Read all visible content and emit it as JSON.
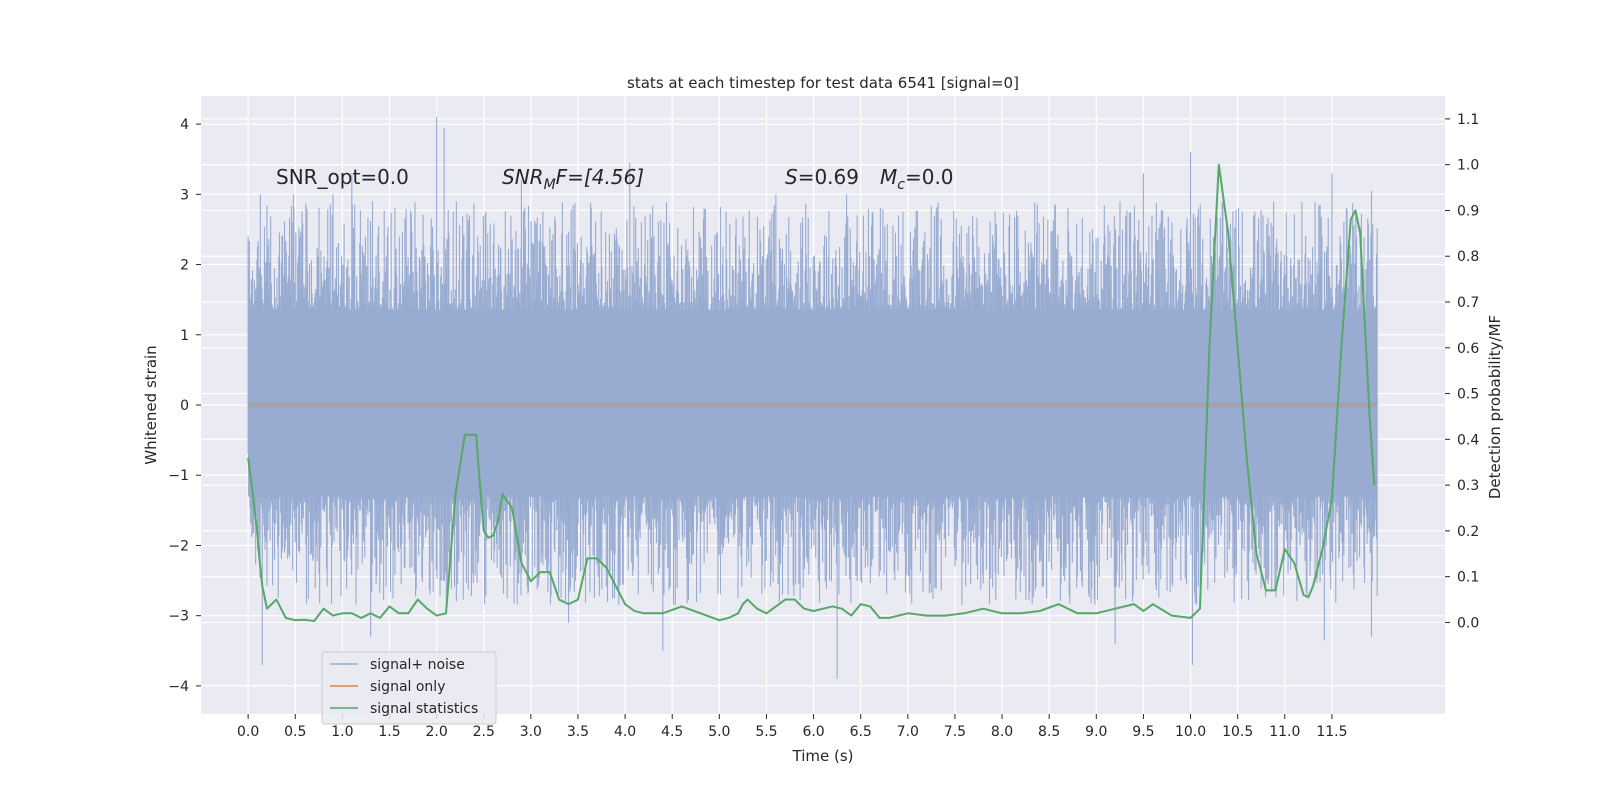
{
  "chart_data": {
    "type": "line",
    "title": "stats at each timestep for test data 6541 [signal=0]",
    "xlabel": "Time (s)",
    "ylabel": "Whitened strain",
    "y2label": "Detection probability/MF",
    "xlim": [
      -0.5,
      12.7
    ],
    "ylim": [
      -4.4,
      4.4
    ],
    "y2lim": [
      -0.2,
      1.15
    ],
    "x_ticks": [
      0.0,
      0.5,
      1.0,
      1.5,
      2.0,
      2.5,
      3.0,
      3.5,
      4.0,
      4.5,
      5.0,
      5.5,
      6.0,
      6.5,
      7.0,
      7.5,
      8.0,
      8.5,
      9.0,
      9.5,
      10.0,
      10.5,
      11.0,
      11.5
    ],
    "x_tick_labels": [
      "0.0",
      "0.5",
      "1.0",
      "1.5",
      "2.0",
      "2.5",
      "3.0",
      "3.5",
      "4.0",
      "4.5",
      "5.0",
      "5.5",
      "6.0",
      "6.5",
      "7.0",
      "7.5",
      "8.0",
      "8.5",
      "9.0",
      "9.5",
      "10.0",
      "10.5",
      "11.0",
      "11.5"
    ],
    "y_ticks": [
      4,
      3,
      2,
      1,
      0,
      -1,
      -2,
      -3,
      -4
    ],
    "y_tick_labels": [
      "4",
      "3",
      "2",
      "1",
      "0",
      "−1",
      "−2",
      "−3",
      "−4"
    ],
    "y2_ticks": [
      1.1,
      1.0,
      0.9,
      0.8,
      0.7,
      0.6,
      0.5,
      0.4,
      0.3,
      0.2,
      0.1,
      0.0
    ],
    "y2_tick_labels": [
      "1.1",
      "1.0",
      "0.9",
      "0.8",
      "0.7",
      "0.6",
      "0.5",
      "0.4",
      "0.3",
      "0.2",
      "0.1",
      "0.0"
    ],
    "grid": true,
    "legend_position": "lower-left",
    "annotations": {
      "snr_opt": "SNR_opt=0.0",
      "snr_mf_main": "SNR",
      "snr_mf_sub": "M",
      "snr_mf_tail": "F=[4.56]",
      "s_var": "S",
      "s_val": "=0.69",
      "mc_var": "M",
      "mc_sub": "c",
      "mc_val": "=0.0"
    },
    "series": [
      {
        "name": "signal+ noise",
        "color": "#98abd1",
        "axis": "left",
        "x_range": [
          0.0,
          11.98
        ],
        "core_band": [
          -1.3,
          1.35
        ],
        "peaks": [
          {
            "x": 0.13,
            "y": 3.0
          },
          {
            "x": 0.48,
            "y": 3.0
          },
          {
            "x": 0.9,
            "y": 3.0
          },
          {
            "x": 1.1,
            "y": 3.3
          },
          {
            "x": 1.32,
            "y": 2.9
          },
          {
            "x": 2.0,
            "y": 4.1
          },
          {
            "x": 2.08,
            "y": 3.95
          },
          {
            "x": 2.9,
            "y": 3.2
          },
          {
            "x": 4.05,
            "y": 3.45
          },
          {
            "x": 5.6,
            "y": 3.0
          },
          {
            "x": 6.35,
            "y": 3.0
          },
          {
            "x": 9.5,
            "y": 3.3
          },
          {
            "x": 10.0,
            "y": 3.6
          },
          {
            "x": 11.5,
            "y": 3.3
          },
          {
            "x": 11.92,
            "y": 3.05
          }
        ],
        "troughs": [
          {
            "x": 0.15,
            "y": -3.7
          },
          {
            "x": 1.3,
            "y": -3.3
          },
          {
            "x": 3.4,
            "y": -3.1
          },
          {
            "x": 4.4,
            "y": -3.5
          },
          {
            "x": 6.25,
            "y": -3.9
          },
          {
            "x": 9.2,
            "y": -3.4
          },
          {
            "x": 10.02,
            "y": -3.7
          },
          {
            "x": 11.42,
            "y": -3.35
          },
          {
            "x": 11.92,
            "y": -3.3
          }
        ]
      },
      {
        "name": "signal only",
        "color": "#dd8452",
        "axis": "left",
        "x": [
          0.0,
          11.98
        ],
        "y": [
          0.0,
          0.0
        ]
      },
      {
        "name": "signal statistics",
        "color": "#55a868",
        "axis": "right",
        "x": [
          0.0,
          0.05,
          0.1,
          0.12,
          0.15,
          0.2,
          0.3,
          0.4,
          0.5,
          0.6,
          0.7,
          0.8,
          0.9,
          1.0,
          1.1,
          1.2,
          1.3,
          1.4,
          1.5,
          1.6,
          1.7,
          1.8,
          1.9,
          2.0,
          2.1,
          2.2,
          2.3,
          2.35,
          2.42,
          2.46,
          2.5,
          2.55,
          2.6,
          2.65,
          2.7,
          2.8,
          2.9,
          3.0,
          3.1,
          3.2,
          3.3,
          3.4,
          3.5,
          3.6,
          3.7,
          3.8,
          3.9,
          4.0,
          4.1,
          4.2,
          4.3,
          4.4,
          4.6,
          4.8,
          5.0,
          5.1,
          5.2,
          5.25,
          5.3,
          5.4,
          5.5,
          5.7,
          5.8,
          5.9,
          6.0,
          6.2,
          6.3,
          6.4,
          6.5,
          6.6,
          6.7,
          6.8,
          7.0,
          7.2,
          7.4,
          7.6,
          7.8,
          8.0,
          8.2,
          8.4,
          8.6,
          8.8,
          9.0,
          9.2,
          9.4,
          9.5,
          9.6,
          9.8,
          10.0,
          10.1,
          10.2,
          10.3,
          10.4,
          10.5,
          10.6,
          10.7,
          10.8,
          10.9,
          11.0,
          11.1,
          11.2,
          11.25,
          11.3,
          11.4,
          11.5,
          11.6,
          11.7,
          11.75,
          11.8,
          11.85,
          11.9,
          11.95
        ],
        "y": [
          0.36,
          0.28,
          0.19,
          0.14,
          0.08,
          0.03,
          0.05,
          0.01,
          0.005,
          0.006,
          0.003,
          0.03,
          0.015,
          0.02,
          0.02,
          0.01,
          0.02,
          0.01,
          0.035,
          0.02,
          0.02,
          0.05,
          0.03,
          0.015,
          0.02,
          0.28,
          0.41,
          0.41,
          0.41,
          0.3,
          0.2,
          0.185,
          0.19,
          0.22,
          0.28,
          0.25,
          0.13,
          0.09,
          0.11,
          0.11,
          0.05,
          0.04,
          0.05,
          0.14,
          0.14,
          0.12,
          0.08,
          0.04,
          0.025,
          0.02,
          0.02,
          0.02,
          0.035,
          0.02,
          0.005,
          0.01,
          0.02,
          0.04,
          0.05,
          0.03,
          0.02,
          0.05,
          0.05,
          0.03,
          0.025,
          0.035,
          0.03,
          0.015,
          0.04,
          0.035,
          0.01,
          0.01,
          0.02,
          0.015,
          0.015,
          0.02,
          0.03,
          0.02,
          0.02,
          0.025,
          0.04,
          0.02,
          0.02,
          0.03,
          0.04,
          0.025,
          0.04,
          0.015,
          0.01,
          0.03,
          0.6,
          1.0,
          0.85,
          0.6,
          0.35,
          0.15,
          0.07,
          0.07,
          0.16,
          0.13,
          0.06,
          0.055,
          0.08,
          0.16,
          0.27,
          0.6,
          0.88,
          0.9,
          0.85,
          0.65,
          0.45,
          0.3
        ]
      }
    ]
  }
}
